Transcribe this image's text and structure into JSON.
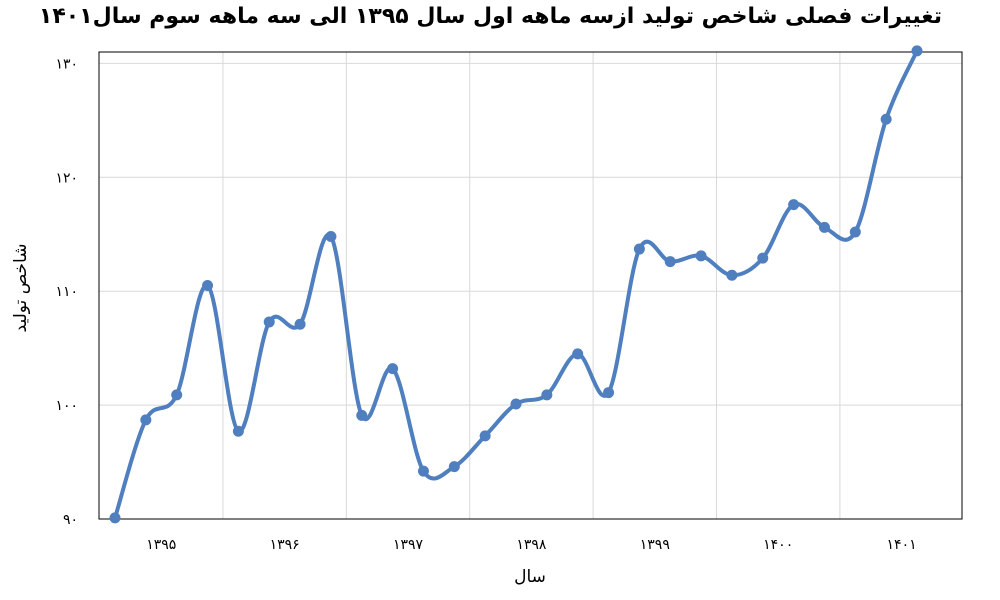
{
  "chart_data": {
    "type": "line",
    "title": "تغییرات فصلی شاخص تولید ازسه ماهه اول سال ۱۳۹۵ الی سه ماهه سوم سال۱۴۰۱",
    "xlabel": "سال",
    "ylabel": "شاخص تولید",
    "x_tick_labels": [
      "۱۳۹۵",
      "۱۳۹۶",
      "۱۳۹۷",
      "۱۳۹۸",
      "۱۳۹۹",
      "۱۴۰۰",
      "۱۴۰۱"
    ],
    "y_ticks": [
      90,
      100,
      110,
      120,
      130
    ],
    "y_tick_labels": [
      "۹۰",
      "۱۰۰",
      "۱۱۰",
      "۱۲۰",
      "۱۳۰"
    ],
    "ylim": [
      90,
      131
    ],
    "grid": true,
    "color": "#4f7fbf",
    "series": [
      {
        "x": [
          "1395-Q1",
          "1395-Q2",
          "1395-Q3",
          "1395-Q4",
          "1396-Q1",
          "1396-Q2",
          "1396-Q3",
          "1396-Q4",
          "1397-Q1",
          "1397-Q2",
          "1397-Q3",
          "1397-Q4",
          "1398-Q1",
          "1398-Q2",
          "1398-Q3",
          "1398-Q4",
          "1399-Q1",
          "1399-Q2",
          "1399-Q3",
          "1399-Q4",
          "1400-Q1",
          "1400-Q2",
          "1400-Q3",
          "1400-Q4",
          "1401-Q1",
          "1401-Q2",
          "1401-Q3"
        ],
        "values": [
          90.1,
          98.7,
          100.9,
          110.5,
          97.7,
          107.3,
          107.1,
          114.8,
          99.1,
          103.2,
          94.2,
          94.6,
          97.3,
          100.1,
          100.9,
          104.5,
          101.1,
          113.7,
          112.6,
          113.1,
          111.4,
          112.9,
          117.6,
          115.6,
          115.2,
          125.1,
          131.1
        ]
      }
    ]
  }
}
